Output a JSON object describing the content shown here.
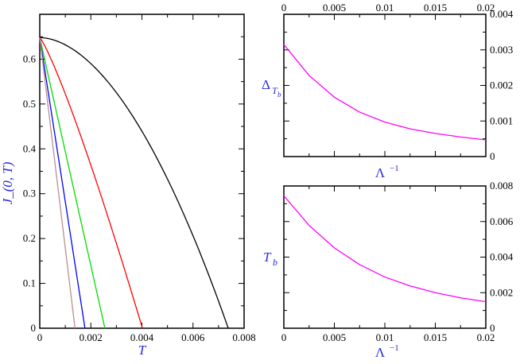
{
  "chart_data": [
    {
      "type": "line",
      "xlabel": "T",
      "ylabel": "J_(0, T)",
      "xlim": [
        0,
        0.008
      ],
      "ylim": [
        0,
        0.7
      ],
      "xticks": [
        "0",
        "0.002",
        "0.004",
        "0.006",
        "0.008"
      ],
      "yticks": [
        "0",
        "0.1",
        "0.2",
        "0.3",
        "0.4",
        "0.5",
        "0.6"
      ],
      "grid": false,
      "series": [
        {
          "color": "#000000",
          "shape": "concave",
          "x": [
            0,
            0.00738
          ],
          "y": [
            0.648,
            0
          ]
        },
        {
          "color": "#ff0000",
          "shape": "slightly-concave",
          "x": [
            0,
            0.00402
          ],
          "y": [
            0.648,
            0
          ]
        },
        {
          "color": "#00dd00",
          "shape": "linear",
          "x": [
            0,
            0.00255
          ],
          "y": [
            0.648,
            0
          ]
        },
        {
          "color": "#0000ff",
          "shape": "linear",
          "x": [
            0,
            0.00177
          ],
          "y": [
            0.648,
            0
          ]
        },
        {
          "color": "#bc8f8f",
          "shape": "linear",
          "x": [
            0,
            0.00138
          ],
          "y": [
            0.648,
            0
          ]
        }
      ]
    },
    {
      "type": "line",
      "xlabel": "Λ",
      "xlabel_sup": "−1",
      "ylabel": "Δ",
      "ylabel_sub": "T",
      "ylabel_subsub": "b",
      "xlim": [
        0,
        0.02
      ],
      "ylim": [
        0,
        0.004
      ],
      "xticks_top": [
        "0",
        "0.005",
        "0.01",
        "0.015",
        "0.02"
      ],
      "yticks_right": [
        "0",
        "0.001",
        "0.002",
        "0.003",
        "0.004"
      ],
      "series": [
        {
          "color": "#ff00ff",
          "x": [
            0,
            0.0025,
            0.005,
            0.0075,
            0.01,
            0.0125,
            0.015,
            0.0175,
            0.02
          ],
          "y": [
            0.00315,
            0.00228,
            0.00167,
            0.00125,
            0.00097,
            0.00078,
            0.00065,
            0.00055,
            0.00047
          ]
        }
      ]
    },
    {
      "type": "line",
      "xlabel": "Λ",
      "xlabel_sup": "−1",
      "ylabel": "T",
      "ylabel_sub": "b",
      "xlim": [
        0,
        0.02
      ],
      "ylim": [
        0,
        0.008
      ],
      "xticks": [
        "0",
        "0.005",
        "0.01",
        "0.015",
        "0.02"
      ],
      "yticks_right": [
        "0",
        "0.002",
        "0.004",
        "0.006",
        "0.008"
      ],
      "series": [
        {
          "color": "#ff00ff",
          "x": [
            0,
            0.0025,
            0.005,
            0.0075,
            0.01,
            0.0125,
            0.015,
            0.0175,
            0.02
          ],
          "y": [
            0.00745,
            0.00578,
            0.00452,
            0.00358,
            0.00288,
            0.00238,
            0.002,
            0.00171,
            0.00149
          ]
        }
      ]
    }
  ]
}
